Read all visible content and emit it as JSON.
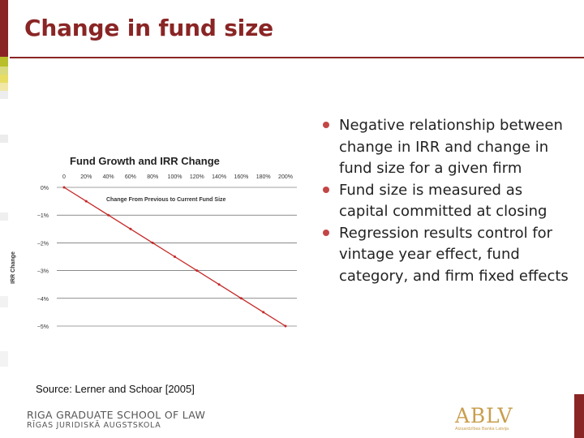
{
  "slide": {
    "title": "Change in fund size",
    "source": "Source: Lerner and Schoar [2005]",
    "school": {
      "line1": "RIGA GRADUATE SCHOOL OF LAW",
      "line2": "RĪGAS JURIDISKĀ AUGSTSKOLA"
    },
    "logo": {
      "main": "ABLV",
      "sub": "Aizsardzības Banka Latvija"
    },
    "bullets": [
      "Negative relationship between change in IRR and change in fund size for a given firm",
      "Fund size is measured as capital committed at closing",
      "Regression results control for vintage year effect, fund category, and firm fixed effects"
    ],
    "colors": {
      "brand": "#8a2525",
      "bullet": "#c34646",
      "line": "#c62828",
      "logo": "#c99e4c"
    }
  },
  "chart_data": {
    "type": "line",
    "title": "Fund Growth and IRR Change",
    "xlabel": "Change From Previous to Current Fund Size",
    "ylabel": "IRR Change",
    "x_tick_labels": [
      "0",
      "20%",
      "40%",
      "60%",
      "80%",
      "100%",
      "120%",
      "140%",
      "160%",
      "180%",
      "200%"
    ],
    "y_tick_labels": [
      "0%",
      "−1%",
      "−2%",
      "−3%",
      "−4%",
      "−5%"
    ],
    "xlim": [
      0,
      200
    ],
    "ylim": [
      -5,
      0
    ],
    "grid": "horizontal",
    "series": [
      {
        "x": [
          0,
          20,
          40,
          60,
          80,
          100,
          120,
          140,
          160,
          180,
          200
        ],
        "y": [
          0,
          -0.5,
          -1.0,
          -1.5,
          -2.0,
          -2.5,
          -3.0,
          -3.5,
          -4.0,
          -4.5,
          -5.0
        ]
      }
    ]
  }
}
